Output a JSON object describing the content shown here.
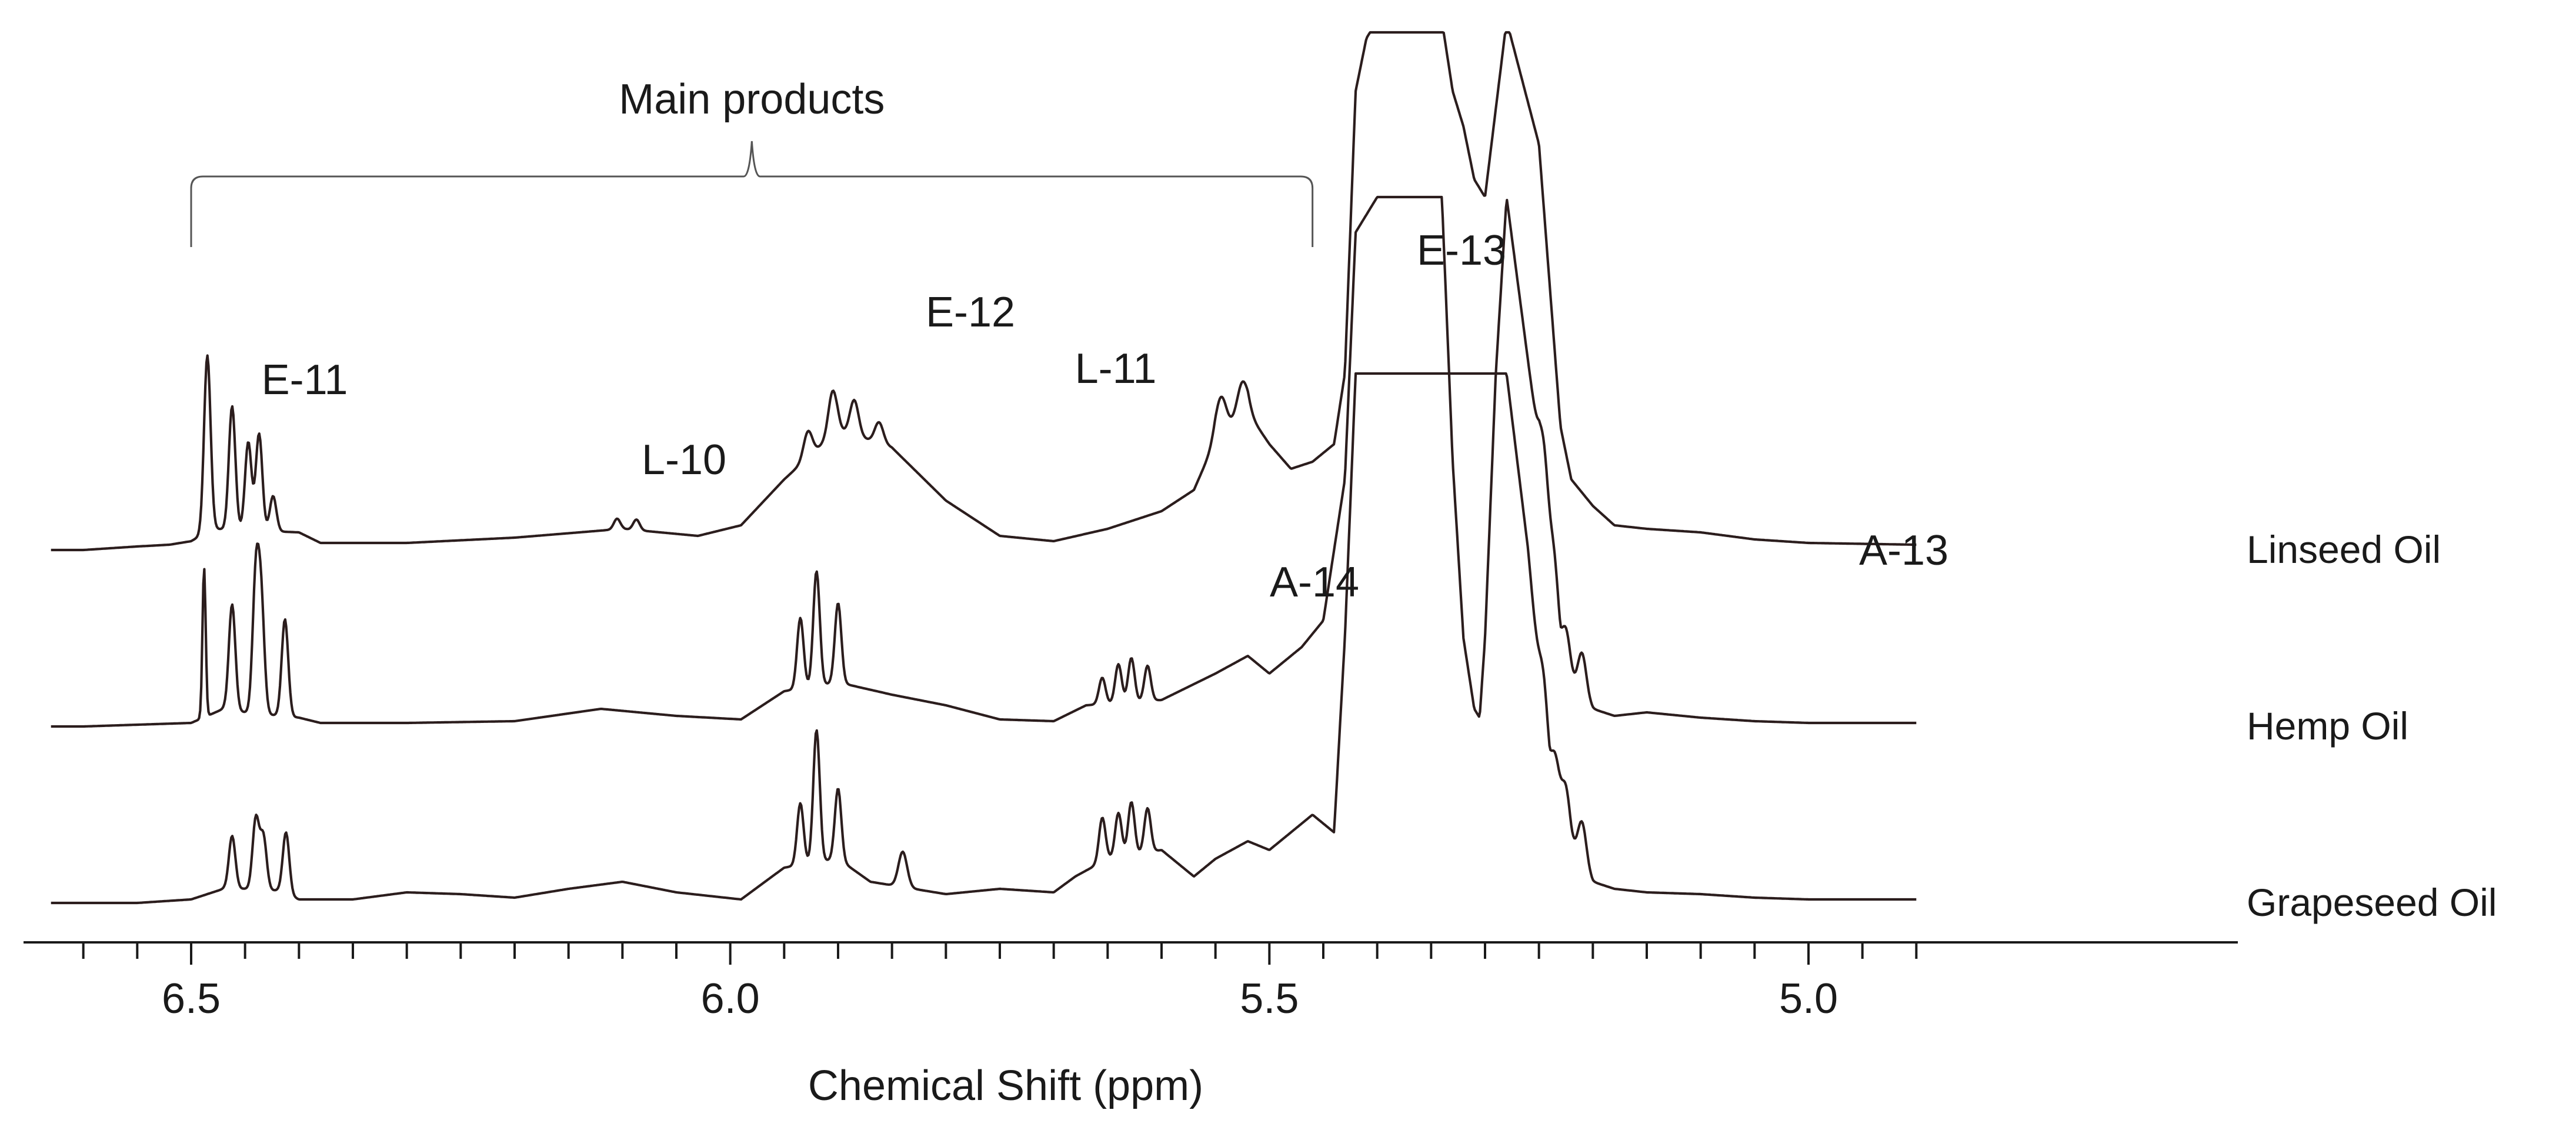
{
  "chart_data": {
    "type": "line",
    "title": "",
    "xlabel": "Chemical Shift (ppm)",
    "ylabel": "",
    "xlim": [
      6.63,
      4.9
    ],
    "x_reversed": true,
    "x_ticks": [
      6.5,
      6.0,
      5.5,
      5.0
    ],
    "x_tick_labels": [
      "6.5",
      "6.0",
      "5.5",
      "5.0"
    ],
    "x_minor_step": 0.05,
    "ylim": [
      -0.2,
      2.8
    ],
    "grid": false,
    "legend": "series names printed at right end of each trace",
    "bracket": {
      "label": "Main products",
      "x_from": 6.5,
      "x_to": 5.46
    },
    "annotations": [
      {
        "text": "E-11",
        "x": 6.46,
        "series": "Linseed Oil"
      },
      {
        "text": "L-10",
        "x": 6.12,
        "series": "Linseed Oil"
      },
      {
        "text": "E-12",
        "x": 5.9,
        "series": "Linseed Oil"
      },
      {
        "text": "L-11",
        "x": 5.85,
        "series": "Linseed Oil"
      },
      {
        "text": "E-13",
        "x": 5.53,
        "series": "Linseed Oil"
      },
      {
        "text": "A-14",
        "x": 5.63,
        "series": "Hemp Oil"
      },
      {
        "text": "A-13",
        "x": 5.24,
        "series": "Hemp Oil"
      }
    ],
    "series": [
      {
        "name": "Linseed Oil",
        "baseline": 2.0,
        "base": [
          [
            6.63,
            0
          ],
          [
            6.6,
            0
          ],
          [
            6.55,
            0.02
          ],
          [
            6.52,
            0.03
          ],
          [
            6.5,
            0.05
          ],
          [
            6.48,
            0.12
          ],
          [
            6.4,
            0.1
          ],
          [
            6.38,
            0.04
          ],
          [
            6.3,
            0.04
          ],
          [
            6.2,
            0.07
          ],
          [
            6.1,
            0.12
          ],
          [
            6.03,
            0.08
          ],
          [
            5.99,
            0.14
          ],
          [
            5.95,
            0.4
          ],
          [
            5.9,
            0.68
          ],
          [
            5.85,
            0.58
          ],
          [
            5.8,
            0.28
          ],
          [
            5.75,
            0.08
          ],
          [
            5.7,
            0.05
          ],
          [
            5.65,
            0.12
          ],
          [
            5.6,
            0.22
          ],
          [
            5.57,
            0.34
          ],
          [
            5.55,
            0.62
          ],
          [
            5.52,
            0.78
          ],
          [
            5.5,
            0.6
          ],
          [
            5.48,
            0.46
          ],
          [
            5.46,
            0.5
          ],
          [
            5.44,
            0.6
          ],
          [
            5.43,
            1.0
          ],
          [
            5.42,
            2.6
          ],
          [
            5.41,
            2.9
          ],
          [
            5.4,
            3.0
          ],
          [
            5.35,
            3.0
          ],
          [
            5.34,
            3.0
          ],
          [
            5.33,
            2.6
          ],
          [
            5.32,
            2.4
          ],
          [
            5.31,
            2.1
          ],
          [
            5.3,
            2.0
          ],
          [
            5.29,
            2.5
          ],
          [
            5.28,
            3.0
          ],
          [
            5.25,
            2.3
          ],
          [
            5.23,
            0.7
          ],
          [
            5.22,
            0.4
          ],
          [
            5.2,
            0.25
          ],
          [
            5.18,
            0.14
          ],
          [
            5.15,
            0.12
          ],
          [
            5.1,
            0.1
          ],
          [
            5.05,
            0.06
          ],
          [
            5.0,
            0.04
          ],
          [
            4.9,
            0.03
          ]
        ],
        "peaks": [
          [
            6.485,
            1.0,
            0.003
          ],
          [
            6.462,
            0.7,
            0.003
          ],
          [
            6.447,
            0.5,
            0.003
          ],
          [
            6.437,
            0.55,
            0.003
          ],
          [
            6.424,
            0.2,
            0.003
          ],
          [
            6.105,
            0.06,
            0.003
          ],
          [
            6.087,
            0.06,
            0.003
          ],
          [
            5.928,
            0.15,
            0.004
          ],
          [
            5.905,
            0.25,
            0.004
          ],
          [
            5.885,
            0.2,
            0.004
          ],
          [
            5.862,
            0.12,
            0.004
          ],
          [
            5.545,
            0.22,
            0.005
          ],
          [
            5.525,
            0.2,
            0.005
          ]
        ]
      },
      {
        "name": "Hemp Oil",
        "baseline": 1.0,
        "base": [
          [
            6.63,
            0
          ],
          [
            6.6,
            0
          ],
          [
            6.55,
            0.01
          ],
          [
            6.5,
            0.02
          ],
          [
            6.47,
            0.1
          ],
          [
            6.45,
            0.08
          ],
          [
            6.4,
            0.05
          ],
          [
            6.38,
            0.02
          ],
          [
            6.3,
            0.02
          ],
          [
            6.2,
            0.03
          ],
          [
            6.12,
            0.1
          ],
          [
            6.05,
            0.06
          ],
          [
            5.99,
            0.04
          ],
          [
            5.95,
            0.2
          ],
          [
            5.9,
            0.25
          ],
          [
            5.85,
            0.18
          ],
          [
            5.8,
            0.12
          ],
          [
            5.75,
            0.04
          ],
          [
            5.7,
            0.03
          ],
          [
            5.67,
            0.12
          ],
          [
            5.6,
            0.15
          ],
          [
            5.55,
            0.3
          ],
          [
            5.52,
            0.4
          ],
          [
            5.5,
            0.3
          ],
          [
            5.47,
            0.45
          ],
          [
            5.45,
            0.6
          ],
          [
            5.43,
            1.4
          ],
          [
            5.42,
            2.8
          ],
          [
            5.4,
            3.0
          ],
          [
            5.35,
            3.0
          ],
          [
            5.34,
            3.0
          ],
          [
            5.33,
            1.5
          ],
          [
            5.32,
            0.5
          ],
          [
            5.31,
            0.1
          ],
          [
            5.305,
            0.05
          ],
          [
            5.3,
            0.5
          ],
          [
            5.29,
            2.0
          ],
          [
            5.28,
            3.0
          ],
          [
            5.25,
            1.6
          ],
          [
            5.23,
            0.3
          ],
          [
            5.2,
            0.1
          ],
          [
            5.18,
            0.06
          ],
          [
            5.15,
            0.08
          ],
          [
            5.1,
            0.05
          ],
          [
            5.05,
            0.03
          ],
          [
            5.0,
            0.02
          ],
          [
            4.9,
            0.02
          ]
        ],
        "peaks": [
          [
            6.488,
            0.85,
            0.0015
          ],
          [
            6.462,
            0.6,
            0.003
          ],
          [
            6.44,
            0.75,
            0.003
          ],
          [
            6.435,
            0.6,
            0.003
          ],
          [
            6.413,
            0.55,
            0.003
          ],
          [
            5.935,
            0.4,
            0.003
          ],
          [
            5.92,
            0.65,
            0.003
          ],
          [
            5.9,
            0.45,
            0.003
          ],
          [
            5.655,
            0.15,
            0.003
          ],
          [
            5.64,
            0.22,
            0.003
          ],
          [
            5.628,
            0.25,
            0.003
          ],
          [
            5.613,
            0.2,
            0.003
          ],
          [
            5.245,
            0.3,
            0.004
          ],
          [
            5.235,
            0.3,
            0.004
          ],
          [
            5.225,
            0.28,
            0.004
          ],
          [
            5.21,
            0.25,
            0.004
          ]
        ]
      },
      {
        "name": "Grapeseed Oil",
        "baseline": 0.0,
        "base": [
          [
            6.63,
            0
          ],
          [
            6.6,
            0
          ],
          [
            6.55,
            0.0
          ],
          [
            6.5,
            0.02
          ],
          [
            6.47,
            0.08
          ],
          [
            6.45,
            0.08
          ],
          [
            6.42,
            0.07
          ],
          [
            6.4,
            0.02
          ],
          [
            6.35,
            0.02
          ],
          [
            6.3,
            0.06
          ],
          [
            6.25,
            0.05
          ],
          [
            6.2,
            0.03
          ],
          [
            6.15,
            0.08
          ],
          [
            6.1,
            0.12
          ],
          [
            6.05,
            0.06
          ],
          [
            5.99,
            0.02
          ],
          [
            5.95,
            0.2
          ],
          [
            5.9,
            0.25
          ],
          [
            5.87,
            0.12
          ],
          [
            5.85,
            0.1
          ],
          [
            5.8,
            0.05
          ],
          [
            5.75,
            0.08
          ],
          [
            5.7,
            0.06
          ],
          [
            5.68,
            0.15
          ],
          [
            5.65,
            0.25
          ],
          [
            5.6,
            0.3
          ],
          [
            5.57,
            0.15
          ],
          [
            5.55,
            0.25
          ],
          [
            5.52,
            0.35
          ],
          [
            5.5,
            0.3
          ],
          [
            5.48,
            0.4
          ],
          [
            5.46,
            0.5
          ],
          [
            5.44,
            0.4
          ],
          [
            5.43,
            1.5
          ],
          [
            5.42,
            3.0
          ],
          [
            5.4,
            3.0
          ],
          [
            5.35,
            3.0
          ],
          [
            5.33,
            3.0
          ],
          [
            5.31,
            3.0
          ],
          [
            5.3,
            3.0
          ],
          [
            5.28,
            3.0
          ],
          [
            5.26,
            2.0
          ],
          [
            5.24,
            0.6
          ],
          [
            5.22,
            0.3
          ],
          [
            5.2,
            0.12
          ],
          [
            5.18,
            0.08
          ],
          [
            5.15,
            0.06
          ],
          [
            5.1,
            0.05
          ],
          [
            5.05,
            0.03
          ],
          [
            5.0,
            0.02
          ],
          [
            4.9,
            0.02
          ]
        ],
        "peaks": [
          [
            6.462,
            0.3,
            0.003
          ],
          [
            6.44,
            0.4,
            0.003
          ],
          [
            6.433,
            0.3,
            0.003
          ],
          [
            6.412,
            0.35,
            0.003
          ],
          [
            5.935,
            0.35,
            0.003
          ],
          [
            5.92,
            0.75,
            0.003
          ],
          [
            5.9,
            0.4,
            0.003
          ],
          [
            5.84,
            0.2,
            0.004
          ],
          [
            5.655,
            0.25,
            0.003
          ],
          [
            5.64,
            0.25,
            0.003
          ],
          [
            5.628,
            0.3,
            0.003
          ],
          [
            5.613,
            0.25,
            0.003
          ],
          [
            5.245,
            0.3,
            0.004
          ],
          [
            5.235,
            0.3,
            0.004
          ],
          [
            5.225,
            0.28,
            0.004
          ],
          [
            5.21,
            0.25,
            0.004
          ]
        ]
      }
    ]
  }
}
